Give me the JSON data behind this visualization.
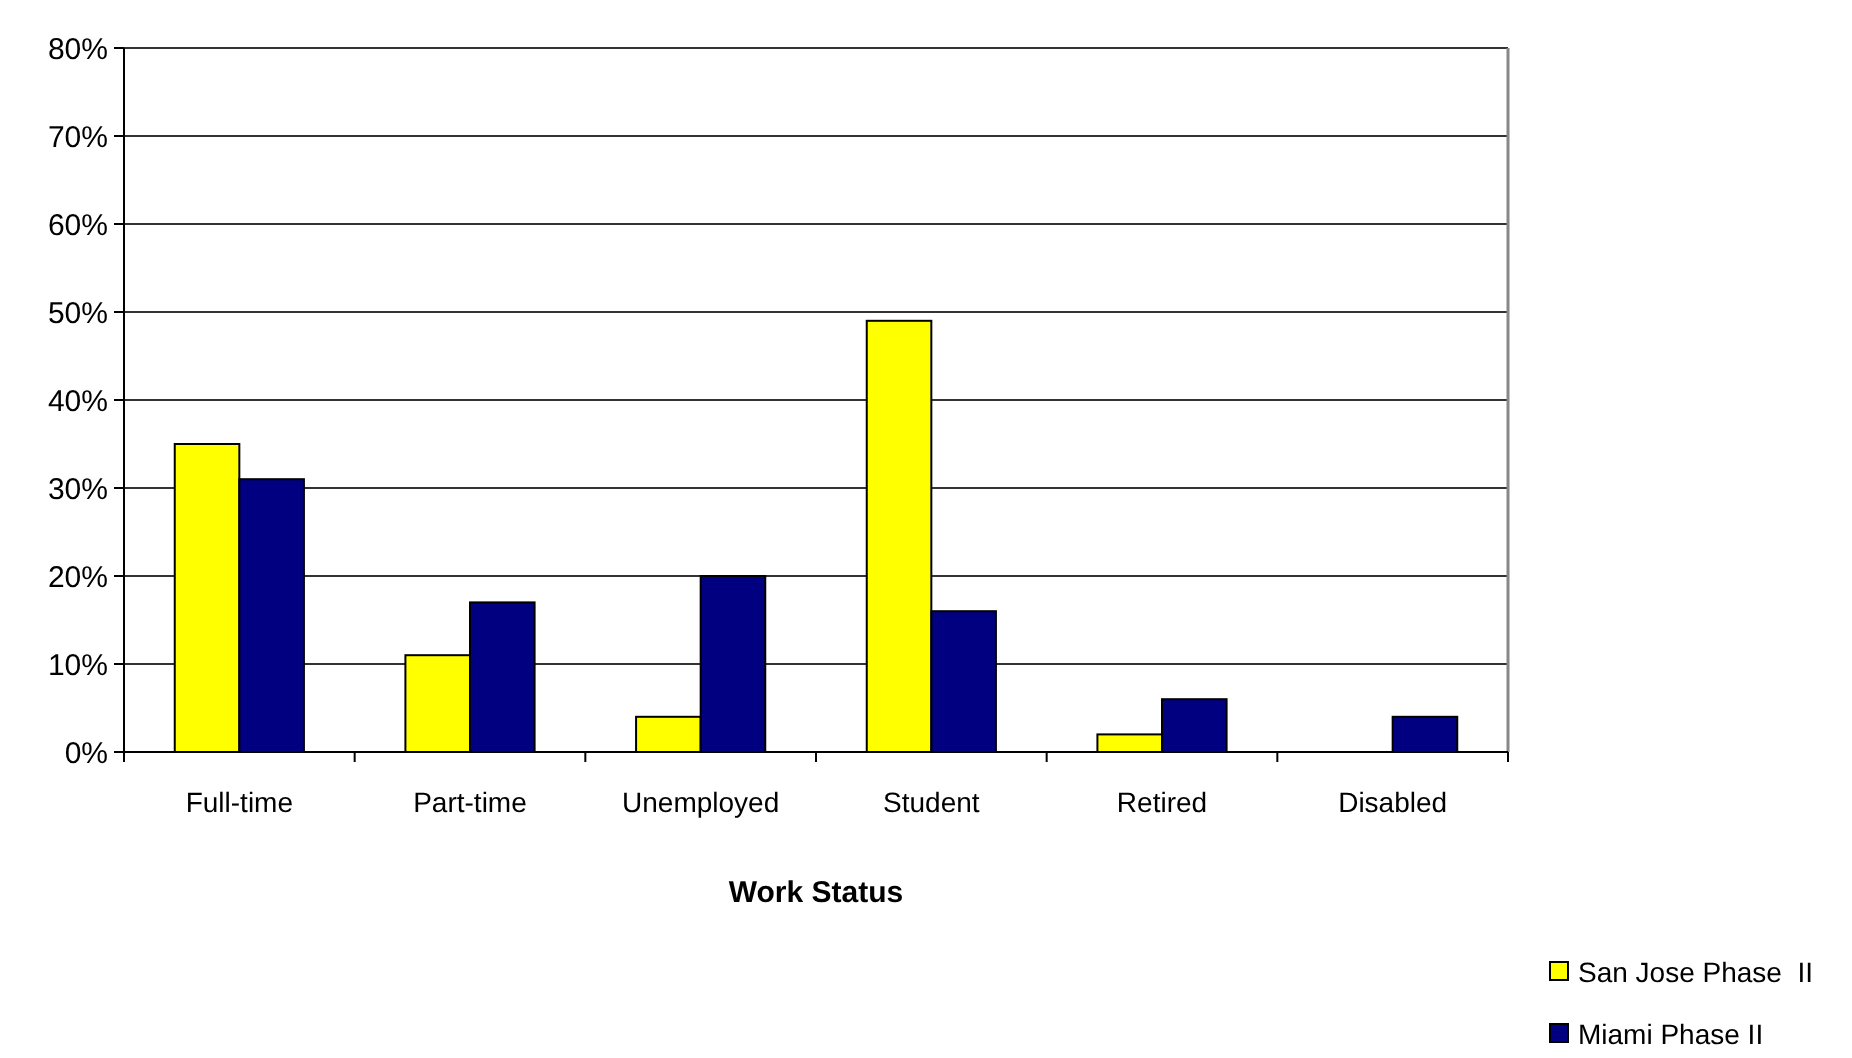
{
  "chart_data": {
    "type": "bar",
    "xlabel": "Work Status",
    "categories": [
      "Full-time",
      "Part-time",
      "Unemployed",
      "Student",
      "Retired",
      "Disabled"
    ],
    "series": [
      {
        "name": "San Jose Phase  II",
        "color": "#ffff00",
        "values": [
          35,
          11,
          4,
          49,
          2,
          0
        ]
      },
      {
        "name": "Miami Phase II",
        "color": "#000080",
        "values": [
          31,
          17,
          20,
          16,
          6,
          4
        ]
      }
    ],
    "ylim": [
      0,
      80
    ],
    "yticks": [
      {
        "value": 0,
        "label": "0%"
      },
      {
        "value": 10,
        "label": "10%"
      },
      {
        "value": 20,
        "label": "20%"
      },
      {
        "value": 30,
        "label": "30%"
      },
      {
        "value": 40,
        "label": "40%"
      },
      {
        "value": 50,
        "label": "50%"
      },
      {
        "value": 60,
        "label": "60%"
      },
      {
        "value": 70,
        "label": "70%"
      },
      {
        "value": 80,
        "label": "80%"
      }
    ],
    "grid": "y",
    "legend": "bottom right"
  }
}
